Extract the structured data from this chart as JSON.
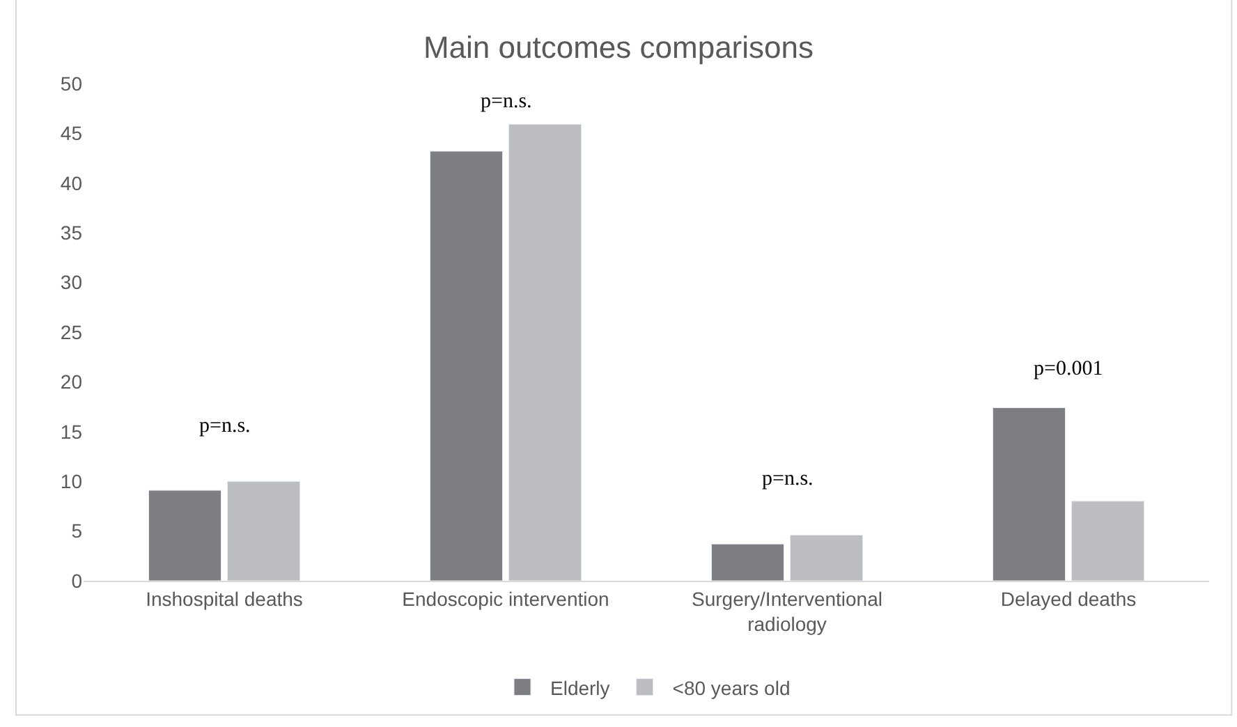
{
  "chart_data": {
    "type": "bar",
    "title": "Main outcomes comparisons",
    "categories": [
      "Inshospital deaths",
      "Endoscopic intervention",
      "Surgery/Interventional radiology",
      "Delayed deaths"
    ],
    "series": [
      {
        "name": "Elderly",
        "color": "#7d7e82",
        "values": [
          9.1,
          43.2,
          3.7,
          17.4
        ]
      },
      {
        "name": "<80 years old",
        "color": "#bcbdc0",
        "values": [
          10,
          45.9,
          4.6,
          8.0
        ]
      }
    ],
    "ylim": [
      0,
      50
    ],
    "yticks": [
      0,
      5,
      10,
      15,
      20,
      25,
      30,
      35,
      40,
      45,
      50
    ],
    "grid": false,
    "legend": "bottom",
    "annotations": [
      "p=n.s.",
      "p=n.s.",
      "p=n.s.",
      "p=0.001"
    ]
  }
}
